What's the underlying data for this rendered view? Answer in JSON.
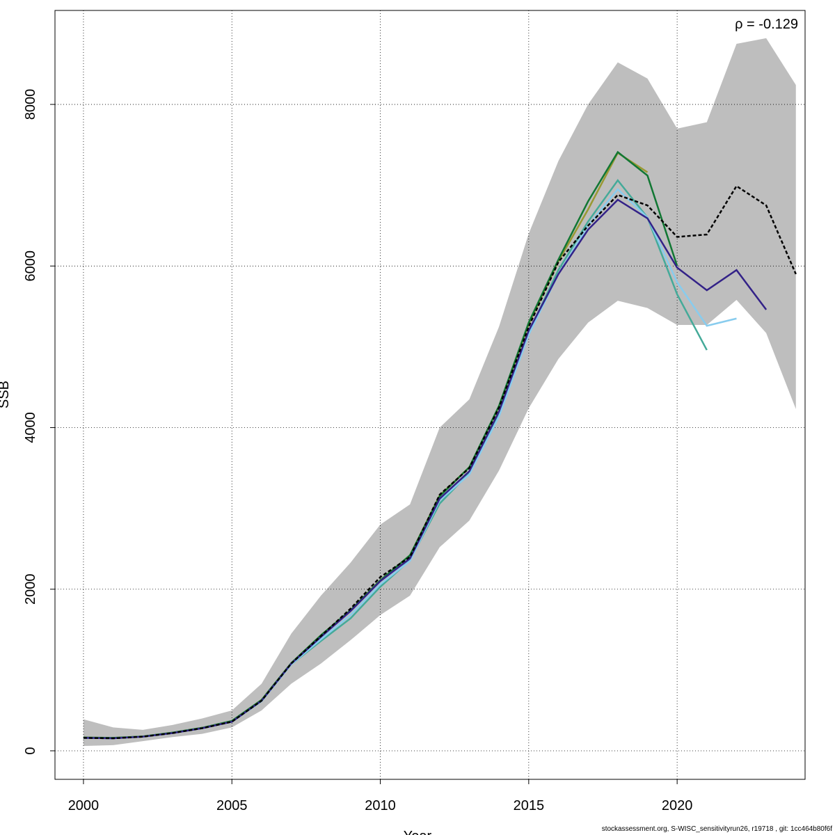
{
  "chart_data": {
    "type": "line",
    "x_label": "Year",
    "y_label": "SSB",
    "annotation": "ρ = -0.129",
    "caption": "stockassessment.org, S-WISC_sensitivityrun26, r19718 , git: 1cc464b80f6f",
    "x": [
      2000,
      2001,
      2002,
      2003,
      2004,
      2005,
      2006,
      2007,
      2008,
      2009,
      2010,
      2011,
      2012,
      2013,
      2014,
      2015,
      2016,
      2017,
      2018,
      2019,
      2020,
      2021,
      2022,
      2023,
      2024
    ],
    "band": {
      "color": "#bebebe",
      "upper": [
        390,
        290,
        260,
        320,
        400,
        500,
        830,
        1450,
        1920,
        2330,
        2800,
        3050,
        4000,
        4350,
        5250,
        6400,
        7300,
        8000,
        8520,
        8320,
        7700,
        7780,
        8750,
        8820,
        8240
      ],
      "lower": [
        60,
        70,
        120,
        170,
        210,
        290,
        500,
        830,
        1080,
        1370,
        1680,
        1920,
        2520,
        2850,
        3470,
        4240,
        4850,
        5300,
        5570,
        5480,
        5270,
        5270,
        5580,
        5170,
        4230
      ]
    },
    "series": [
      {
        "color": "#999933",
        "values": [
          165,
          160,
          178,
          225,
          285,
          370,
          630,
          1085,
          1430,
          1740,
          2110,
          2420,
          3160,
          3510,
          4260,
          5280,
          6060,
          6700,
          7400,
          7160,
          null,
          null,
          null,
          null,
          null
        ]
      },
      {
        "color": "#117733",
        "values": [
          165,
          160,
          178,
          225,
          285,
          370,
          630,
          1085,
          1430,
          1740,
          2110,
          2420,
          3150,
          3510,
          4270,
          5300,
          6080,
          6800,
          7410,
          7120,
          6000,
          null,
          null,
          null,
          null
        ]
      },
      {
        "color": "#44aa99",
        "values": [
          160,
          155,
          175,
          220,
          280,
          360,
          615,
          1070,
          1360,
          1640,
          2030,
          2360,
          3060,
          3440,
          4180,
          5180,
          5950,
          6550,
          7060,
          6600,
          5650,
          4960,
          null,
          null,
          null
        ]
      },
      {
        "color": "#88ccee",
        "values": [
          160,
          155,
          175,
          220,
          280,
          360,
          615,
          1070,
          1380,
          1680,
          2060,
          2350,
          3100,
          3420,
          4140,
          5150,
          5900,
          6500,
          6950,
          6600,
          5800,
          5260,
          5350,
          null,
          null
        ]
      },
      {
        "color": "#332288",
        "values": [
          160,
          155,
          175,
          220,
          280,
          360,
          620,
          1080,
          1410,
          1730,
          2100,
          2380,
          3120,
          3460,
          4200,
          5200,
          5900,
          6450,
          6820,
          6590,
          5980,
          5700,
          5950,
          5460,
          null
        ]
      },
      {
        "color": "#000000",
        "dashed": true,
        "values": [
          160,
          155,
          175,
          220,
          280,
          360,
          620,
          1080,
          1420,
          1760,
          2150,
          2400,
          3170,
          3500,
          4250,
          5250,
          6050,
          6500,
          6880,
          6750,
          6360,
          6390,
          6990,
          6750,
          5900
        ]
      }
    ],
    "xlim": [
      1999.04,
      2024.31
    ],
    "ylim": [
      -353,
      9163
    ],
    "xticks": [
      2000,
      2005,
      2010,
      2015,
      2020
    ],
    "yticks": [
      0,
      2000,
      4000,
      6000,
      8000
    ],
    "grid": true
  }
}
